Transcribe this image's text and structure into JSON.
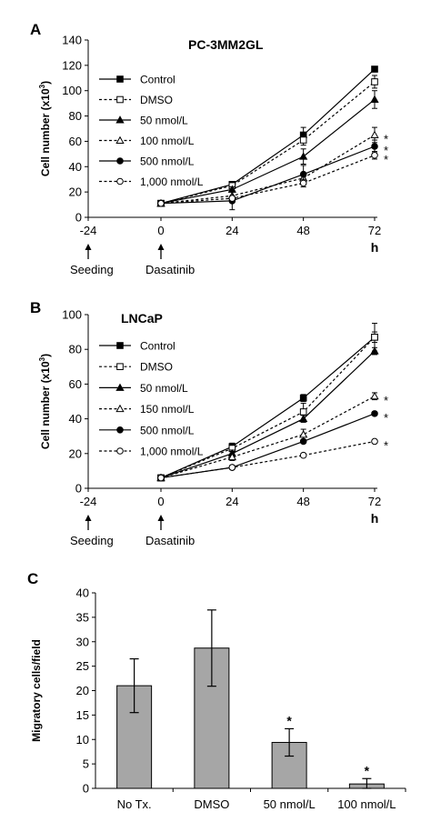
{
  "chart_data": [
    {
      "type": "line",
      "panel": "A",
      "title": "PC-3MM2GL",
      "ylabel": "Cell number (x10³)",
      "ylabel_main": "Cell number (x10",
      "ylabel_sup": "3",
      "ylabel_close": ")",
      "ylim": [
        0,
        140
      ],
      "yticks": [
        "0",
        "20",
        "40",
        "60",
        "80",
        "100",
        "120",
        "140"
      ],
      "xticks": [
        "-24",
        "0",
        "24",
        "48",
        "72"
      ],
      "x_unit": "h",
      "annotations": [
        "Seeding",
        "Dasatinib"
      ],
      "x": [
        0,
        24,
        48,
        72
      ],
      "series": [
        {
          "name": "Control",
          "values": [
            11,
            26,
            65,
            117
          ],
          "errors": [
            1,
            2,
            6,
            1
          ],
          "marker": "square",
          "filled": true,
          "dashed": false
        },
        {
          "name": "DMSO",
          "values": [
            11,
            25,
            61,
            107
          ],
          "errors": [
            1,
            2,
            4,
            5
          ],
          "marker": "square",
          "filled": false,
          "dashed": true
        },
        {
          "name": "50 nmol/L",
          "values": [
            11,
            22,
            48,
            93
          ],
          "errors": [
            1,
            2,
            6,
            7
          ],
          "marker": "triangle",
          "filled": true,
          "dashed": false
        },
        {
          "name": "100 nmol/L",
          "values": [
            11,
            17,
            31,
            65
          ],
          "errors": [
            1,
            3,
            2,
            6
          ],
          "marker": "triangle",
          "filled": false,
          "dashed": true
        },
        {
          "name": "500 nmol/L",
          "values": [
            11,
            13,
            34,
            56
          ],
          "errors": [
            1,
            7,
            7,
            5
          ],
          "marker": "circle",
          "filled": true,
          "dashed": false
        },
        {
          "name": "1,000 nmol/L",
          "values": [
            11,
            15,
            27,
            49
          ],
          "errors": [
            1,
            2,
            3,
            3
          ],
          "marker": "circle",
          "filled": false,
          "dashed": true
        }
      ],
      "significance": [
        "*",
        "*",
        "*"
      ]
    },
    {
      "type": "line",
      "panel": "B",
      "title": "LNCaP",
      "ylabel": "Cell number (x10³)",
      "ylabel_main": "Cell number (x10",
      "ylabel_sup": "3",
      "ylabel_close": ")",
      "ylim": [
        0,
        100
      ],
      "yticks": [
        "0",
        "20",
        "40",
        "60",
        "80",
        "100"
      ],
      "xticks": [
        "-24",
        "0",
        "24",
        "48",
        "72"
      ],
      "x_unit": "h",
      "annotations": [
        "Seeding",
        "Dasatinib"
      ],
      "x": [
        0,
        24,
        48,
        72
      ],
      "series": [
        {
          "name": "Control",
          "values": [
            6,
            24,
            52,
            87
          ],
          "errors": [
            1,
            2,
            2,
            8
          ],
          "marker": "square",
          "filled": true,
          "dashed": false
        },
        {
          "name": "DMSO",
          "values": [
            6,
            23,
            44,
            87
          ],
          "errors": [
            1,
            2,
            5,
            3
          ],
          "marker": "square",
          "filled": false,
          "dashed": true
        },
        {
          "name": "50 nmol/L",
          "values": [
            6,
            20,
            40,
            79
          ],
          "errors": [
            1,
            2,
            2,
            2
          ],
          "marker": "triangle",
          "filled": true,
          "dashed": false
        },
        {
          "name": "150 nmol/L",
          "values": [
            6,
            18,
            31,
            53
          ],
          "errors": [
            1,
            2,
            3,
            2
          ],
          "marker": "triangle",
          "filled": false,
          "dashed": true
        },
        {
          "name": "500 nmol/L",
          "values": [
            6,
            12,
            27,
            43
          ],
          "errors": [
            1,
            1,
            1,
            1
          ],
          "marker": "circle",
          "filled": true,
          "dashed": false
        },
        {
          "name": "1,000 nmol/L",
          "values": [
            6,
            12,
            19,
            27
          ],
          "errors": [
            1,
            1,
            1,
            1
          ],
          "marker": "circle",
          "filled": false,
          "dashed": true
        }
      ],
      "significance": [
        "*",
        "*",
        "*"
      ]
    },
    {
      "type": "bar",
      "panel": "C",
      "ylabel": "Migratory cells/field",
      "ylim": [
        0,
        40
      ],
      "yticks": [
        "0",
        "5",
        "10",
        "15",
        "20",
        "25",
        "30",
        "35",
        "40"
      ],
      "categories": [
        "No Tx.",
        "DMSO",
        "50 nmol/L",
        "100 nmol/L"
      ],
      "values": [
        21,
        28.7,
        9.4,
        0.9
      ],
      "errors": [
        5.5,
        7.8,
        2.8,
        1.1
      ],
      "significance": [
        "",
        "",
        "*",
        "*"
      ],
      "bar_color": "#a6a6a6"
    }
  ]
}
